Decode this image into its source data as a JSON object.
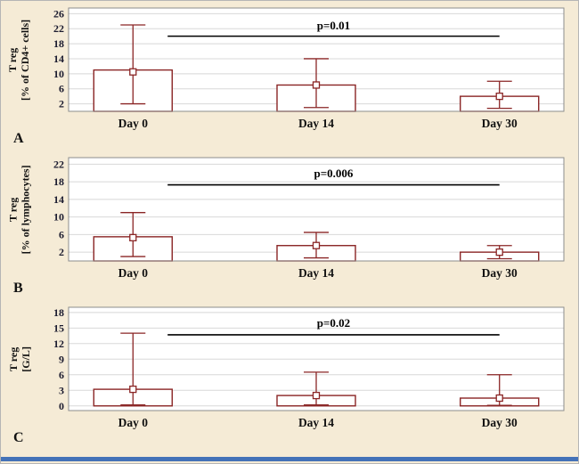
{
  "figure": {
    "background": "#f5ebd6",
    "plot_background": "#ffffff",
    "bar_color": "#8a2525",
    "sig_line_color": "#000000",
    "grid_color": "#d8d8d8",
    "plot_border_color": "#8c8c8c",
    "tick_text_color": "#1b1b2f",
    "category_text_color": "#111111",
    "accent_bar_color": "#4472b8"
  },
  "chart_data": [
    {
      "type": "bar",
      "panel_label": "A",
      "ylabel_line1": "T reg",
      "ylabel_line2": "[% of CD4+ cells]",
      "categories": [
        "Day 0",
        "Day 14",
        "Day 30"
      ],
      "values": [
        11,
        7,
        4
      ],
      "markers": [
        10.5,
        7,
        4
      ],
      "whisker_high": [
        23,
        14,
        8
      ],
      "whisker_low": [
        2,
        1,
        0.8
      ],
      "yticks": [
        2,
        6,
        10,
        14,
        18,
        22,
        26
      ],
      "ylim": [
        0,
        27.5
      ],
      "grid": true,
      "significance": {
        "label": "p=0.01",
        "line_y": 20,
        "label_y": 22.8,
        "x_from": 0.2,
        "x_to": 0.87
      }
    },
    {
      "type": "bar",
      "panel_label": "B",
      "ylabel_line1": "T reg",
      "ylabel_line2": "[% of lymphocytes]",
      "categories": [
        "Day 0",
        "Day 14",
        "Day 30"
      ],
      "values": [
        5.5,
        3.5,
        2
      ],
      "markers": [
        5.3,
        3.5,
        2
      ],
      "whisker_high": [
        11,
        6.5,
        3.5
      ],
      "whisker_low": [
        1,
        0.7,
        0.5
      ],
      "yticks": [
        2,
        6,
        10,
        14,
        18,
        22
      ],
      "ylim": [
        0,
        23.5
      ],
      "grid": true,
      "significance": {
        "label": "p=0.006",
        "line_y": 17.3,
        "label_y": 19.9,
        "x_from": 0.2,
        "x_to": 0.87
      }
    },
    {
      "type": "bar",
      "panel_label": "C",
      "ylabel_line1": "T reg",
      "ylabel_line2": "[G/L]",
      "categories": [
        "Day 0",
        "Day 14",
        "Day 30"
      ],
      "values": [
        3.2,
        2,
        1.5
      ],
      "markers": [
        3.2,
        2,
        1.5
      ],
      "whisker_high": [
        14,
        6.5,
        6
      ],
      "whisker_low": [
        0.2,
        0.2,
        0.1
      ],
      "yticks": [
        0,
        3,
        6,
        9,
        12,
        15,
        18
      ],
      "ylim": [
        -0.9,
        19
      ],
      "grid": true,
      "significance": {
        "label": "p=0.02",
        "line_y": 13.7,
        "label_y": 15.9,
        "x_from": 0.2,
        "x_to": 0.87
      }
    }
  ]
}
